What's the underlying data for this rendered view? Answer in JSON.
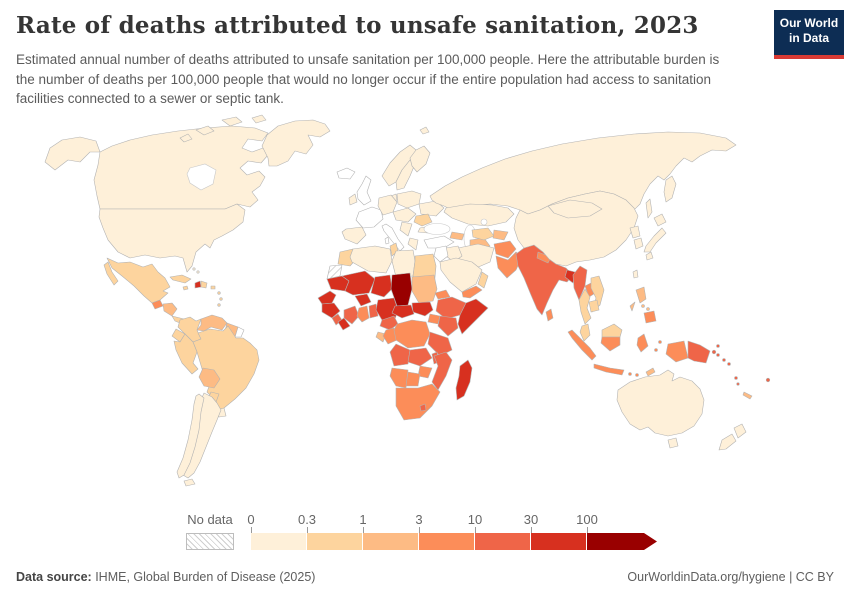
{
  "header": {
    "title": "Rate of deaths attributed to unsafe sanitation, 2023",
    "subtitle": "Estimated annual number of deaths attributed to unsafe sanitation per 100,000 people. Here the attributable burden is the number of deaths per 100,000 people that would no longer occur if the entire population had access to sanitation facilities connected to a sewer or septic tank."
  },
  "logo": {
    "line1": "Our World",
    "line2": "in Data",
    "bg_color": "#0d2d54",
    "accent_color": "#d93a34"
  },
  "footer": {
    "datasource_label": "Data source:",
    "datasource_value": " IHME, Global Burden of Disease (2025)",
    "right_text": "OurWorldinData.org/hygiene | CC BY"
  },
  "chart_data": {
    "type": "heatmap",
    "subtype": "world-choropleth",
    "title": "Rate of deaths attributed to unsafe sanitation, 2023",
    "year": "2023",
    "unit": "deaths per 100,000 people",
    "zero_color": "#ffffff",
    "legend": {
      "no_data_label": "No data",
      "position": "bottom",
      "bins": [
        {
          "threshold_label": "0",
          "color": "#fef0d9"
        },
        {
          "threshold_label": "0.3",
          "color": "#fdd49e"
        },
        {
          "threshold_label": "1",
          "color": "#fdbb84"
        },
        {
          "threshold_label": "3",
          "color": "#fc8d59"
        },
        {
          "threshold_label": "10",
          "color": "#ef6548"
        },
        {
          "threshold_label": "30",
          "color": "#d7301f"
        },
        {
          "threshold_label": "100",
          "color": "#990000"
        }
      ]
    },
    "regions": {
      "united-states": 0,
      "canada": 0,
      "greenland": 0,
      "iceland": -1,
      "svalbard": 0,
      "mexico": 1,
      "guatemala": 3,
      "honduras-nicaragua": 2,
      "costa-rica-panama": 1,
      "cuba": 1,
      "jamaica": 1,
      "haiti": 5,
      "dominican-republic": 1,
      "puerto-rico": 1,
      "lesser-antilles": 1,
      "bahamas": 0,
      "colombia": 1,
      "venezuela": 2,
      "guyana-suriname": 2,
      "french-guiana": -1,
      "ecuador": 1,
      "peru": 1,
      "brazil": 1,
      "bolivia": 2,
      "paraguay": 1,
      "uruguay": 0,
      "argentina": 0,
      "chile": 0,
      "tierra-del-fuego": 0,
      "norway": 0,
      "sweden": 0,
      "finland": 0,
      "denmark": 0,
      "united-kingdom": -1,
      "ireland": 0,
      "france": -1,
      "spain-portugal": 0,
      "germany-central": 0,
      "italy": -1,
      "poland-baltics": 0,
      "czech-hungary": 0,
      "ukraine": 0,
      "romania": 1,
      "balkans": 0,
      "bulgaria": 0,
      "greece": 0,
      "turkey": -1,
      "russia": 0,
      "kazakhstan": 0,
      "caucasus": 2,
      "turkmenistan": 2,
      "uzbekistan": 1,
      "kyrgyzstan-tajikistan": 2,
      "iran": 0,
      "iraq": 0,
      "syria-jordan-israel": -1,
      "saudi-arabia": 0,
      "yemen": 3,
      "oman": 1,
      "afghanistan": 3,
      "pakistan": 3,
      "india": 4,
      "nepal": 3,
      "bangladesh": 5,
      "sri-lanka": 3,
      "china": 0,
      "mongolia": 0,
      "north-korea": 0,
      "south-korea": 0,
      "japan": 0,
      "taiwan": 0,
      "myanmar": 4,
      "laos": 3,
      "vietnam": 1,
      "thailand": 1,
      "cambodia": 1,
      "malaysia": 1,
      "indonesia": 3,
      "timor": 2,
      "philippines-luzon": 2,
      "philippines-visayas": 2,
      "philippines-mindanao": 3,
      "philippines-palawan": 2,
      "papua-new-guinea": 4,
      "solomon-islands": 4,
      "vanuatu": 4,
      "fiji": 4,
      "new-caledonia": 2,
      "australia": 0,
      "new-zealand": 0,
      "morocco": 1,
      "western-sahara": null,
      "algeria": 0,
      "tunisia": 1,
      "libya": 0,
      "egypt": 1,
      "mauritania": 5,
      "senegal": 5,
      "mali": 5,
      "burkina-faso": 5,
      "niger": 5,
      "guinea": 5,
      "sierra-leone": 4,
      "liberia": 5,
      "cote-divoire": 4,
      "ghana": 3,
      "togo-benin": 4,
      "nigeria": 5,
      "chad": 6,
      "sudan": 2,
      "eritrea": 3,
      "ethiopia": 4,
      "somalia": 5,
      "south-sudan": 5,
      "central-african-republic": 5,
      "cameroon": 4,
      "gabon-eq-guinea": 2,
      "congo": 3,
      "uganda-rwanda": 3,
      "kenya": 4,
      "dr-congo": 3,
      "tanzania": 4,
      "angola": 4,
      "zambia": 4,
      "malawi": 4,
      "mozambique": 4,
      "zimbabwe": 3,
      "namibia": 3,
      "botswana": 3,
      "south-africa": 3,
      "lesotho": 4,
      "madagascar": 5
    }
  }
}
